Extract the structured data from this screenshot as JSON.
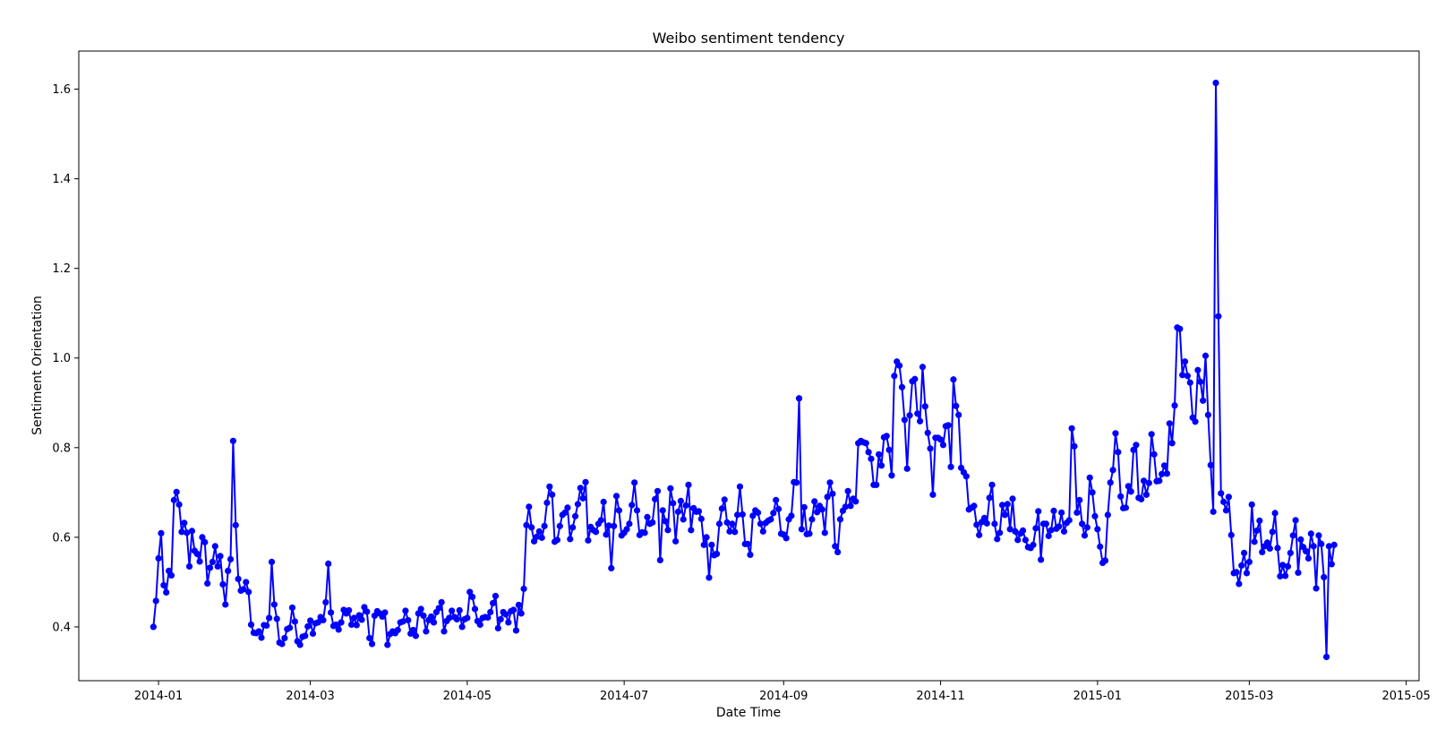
{
  "chart_data": {
    "type": "line",
    "title": "Weibo sentiment tendency",
    "xlabel": "Date Time",
    "ylabel": "Sentiment Orientation",
    "xlim": [
      "2013-12-01",
      "2015-05-06"
    ],
    "ylim": [
      0.28,
      1.685
    ],
    "x_ticks": [
      "2014-01",
      "2014-03",
      "2014-05",
      "2014-07",
      "2014-09",
      "2014-11",
      "2015-01",
      "2015-03",
      "2015-05"
    ],
    "y_ticks": [
      "0.4",
      "0.6",
      "0.8",
      "1.0",
      "1.2",
      "1.4",
      "1.6"
    ],
    "grid": false,
    "color": "#0000ff",
    "marker": "circle",
    "series": [
      {
        "start_date": "2013-12-30",
        "step_days": 1,
        "values": [
          0.4,
          0.458,
          0.553,
          0.609,
          0.493,
          0.477,
          0.525,
          0.515,
          0.683,
          0.701,
          0.673,
          0.612,
          0.632,
          0.61,
          0.535,
          0.614,
          0.57,
          0.563,
          0.546,
          0.6,
          0.589,
          0.497,
          0.532,
          0.545,
          0.58,
          0.535,
          0.558,
          0.495,
          0.45,
          0.525,
          0.551,
          0.815,
          0.627,
          0.507,
          0.481,
          0.484,
          0.5,
          0.478,
          0.405,
          0.387,
          0.386,
          0.39,
          0.376,
          0.404,
          0.403,
          0.42,
          0.545,
          0.45,
          0.418,
          0.365,
          0.362,
          0.375,
          0.395,
          0.398,
          0.443,
          0.412,
          0.368,
          0.36,
          0.378,
          0.38,
          0.401,
          0.414,
          0.385,
          0.408,
          0.41,
          0.422,
          0.415,
          0.455,
          0.541,
          0.432,
          0.402,
          0.405,
          0.394,
          0.41,
          0.438,
          0.43,
          0.437,
          0.405,
          0.42,
          0.404,
          0.426,
          0.416,
          0.444,
          0.434,
          0.375,
          0.362,
          0.425,
          0.435,
          0.43,
          0.423,
          0.432,
          0.36,
          0.384,
          0.39,
          0.386,
          0.393,
          0.41,
          0.412,
          0.436,
          0.415,
          0.385,
          0.393,
          0.38,
          0.43,
          0.44,
          0.425,
          0.39,
          0.415,
          0.423,
          0.41,
          0.433,
          0.442,
          0.455,
          0.39,
          0.413,
          0.42,
          0.436,
          0.422,
          0.417,
          0.437,
          0.4,
          0.417,
          0.42,
          0.478,
          0.467,
          0.44,
          0.413,
          0.405,
          0.42,
          0.422,
          0.421,
          0.433,
          0.453,
          0.469,
          0.397,
          0.417,
          0.433,
          0.428,
          0.41,
          0.435,
          0.438,
          0.392,
          0.449,
          0.43,
          0.485,
          0.627,
          0.668,
          0.622,
          0.591,
          0.601,
          0.613,
          0.599,
          0.625,
          0.677,
          0.713,
          0.695,
          0.59,
          0.594,
          0.625,
          0.65,
          0.655,
          0.666,
          0.596,
          0.622,
          0.647,
          0.674,
          0.71,
          0.687,
          0.723,
          0.593,
          0.623,
          0.616,
          0.612,
          0.63,
          0.638,
          0.679,
          0.606,
          0.626,
          0.531,
          0.625,
          0.692,
          0.66,
          0.604,
          0.61,
          0.618,
          0.63,
          0.672,
          0.722,
          0.66,
          0.605,
          0.611,
          0.61,
          0.645,
          0.63,
          0.633,
          0.685,
          0.703,
          0.549,
          0.66,
          0.636,
          0.616,
          0.709,
          0.676,
          0.591,
          0.657,
          0.681,
          0.64,
          0.671,
          0.717,
          0.616,
          0.665,
          0.657,
          0.658,
          0.641,
          0.583,
          0.6,
          0.51,
          0.583,
          0.56,
          0.563,
          0.63,
          0.664,
          0.684,
          0.633,
          0.613,
          0.63,
          0.612,
          0.65,
          0.713,
          0.651,
          0.585,
          0.585,
          0.561,
          0.648,
          0.66,
          0.655,
          0.63,
          0.613,
          0.632,
          0.637,
          0.64,
          0.654,
          0.683,
          0.663,
          0.608,
          0.606,
          0.598,
          0.64,
          0.648,
          0.723,
          0.722,
          0.91,
          0.618,
          0.667,
          0.607,
          0.608,
          0.64,
          0.68,
          0.656,
          0.67,
          0.662,
          0.61,
          0.69,
          0.722,
          0.697,
          0.58,
          0.567,
          0.64,
          0.659,
          0.668,
          0.703,
          0.67,
          0.686,
          0.68,
          0.81,
          0.815,
          0.812,
          0.81,
          0.79,
          0.775,
          0.717,
          0.717,
          0.785,
          0.76,
          0.823,
          0.826,
          0.795,
          0.738,
          0.96,
          0.992,
          0.983,
          0.935,
          0.862,
          0.753,
          0.872,
          0.948,
          0.953,
          0.876,
          0.859,
          0.98,
          0.892,
          0.833,
          0.798,
          0.695,
          0.822,
          0.822,
          0.818,
          0.806,
          0.848,
          0.85,
          0.757,
          0.952,
          0.893,
          0.873,
          0.755,
          0.745,
          0.736,
          0.662,
          0.666,
          0.67,
          0.628,
          0.605,
          0.634,
          0.643,
          0.631,
          0.688,
          0.717,
          0.63,
          0.596,
          0.61,
          0.672,
          0.65,
          0.674,
          0.618,
          0.686,
          0.613,
          0.594,
          0.608,
          0.615,
          0.594,
          0.578,
          0.576,
          0.583,
          0.62,
          0.658,
          0.55,
          0.63,
          0.63,
          0.603,
          0.616,
          0.659,
          0.619,
          0.624,
          0.655,
          0.613,
          0.632,
          0.638,
          0.843,
          0.803,
          0.655,
          0.683,
          0.63,
          0.604,
          0.622,
          0.733,
          0.7,
          0.647,
          0.618,
          0.579,
          0.543,
          0.548,
          0.65,
          0.722,
          0.75,
          0.832,
          0.79,
          0.691,
          0.665,
          0.666,
          0.714,
          0.702,
          0.795,
          0.806,
          0.688,
          0.685,
          0.726,
          0.695,
          0.721,
          0.83,
          0.785,
          0.725,
          0.726,
          0.741,
          0.76,
          0.742,
          0.854,
          0.81,
          0.894,
          1.068,
          1.065,
          0.962,
          0.992,
          0.96,
          0.945,
          0.867,
          0.858,
          0.973,
          0.947,
          0.905,
          1.005,
          0.873,
          0.761,
          0.657,
          1.614,
          1.093,
          0.698,
          0.679,
          0.66,
          0.69,
          0.605,
          0.52,
          0.522,
          0.496,
          0.537,
          0.565,
          0.52,
          0.545,
          0.673,
          0.59,
          0.615,
          0.637,
          0.567,
          0.58,
          0.588,
          0.575,
          0.612,
          0.654,
          0.576,
          0.513,
          0.538,
          0.514,
          0.535,
          0.565,
          0.604,
          0.638,
          0.521,
          0.595,
          0.578,
          0.569,
          0.553,
          0.608,
          0.58,
          0.486,
          0.604,
          0.585,
          0.511,
          0.333,
          0.58,
          0.54,
          0.583
        ]
      }
    ]
  }
}
